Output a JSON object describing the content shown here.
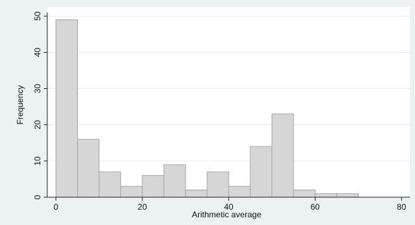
{
  "chart_data": {
    "type": "bar",
    "title": "",
    "xlabel": "Arithmetic average",
    "ylabel": "Frequency",
    "bin_width": 5,
    "bins": [
      {
        "start": 0,
        "end": 5,
        "frequency": 49
      },
      {
        "start": 5,
        "end": 10,
        "frequency": 16
      },
      {
        "start": 10,
        "end": 15,
        "frequency": 7
      },
      {
        "start": 15,
        "end": 20,
        "frequency": 3
      },
      {
        "start": 20,
        "end": 25,
        "frequency": 6
      },
      {
        "start": 25,
        "end": 30,
        "frequency": 9
      },
      {
        "start": 30,
        "end": 35,
        "frequency": 2
      },
      {
        "start": 35,
        "end": 40,
        "frequency": 7
      },
      {
        "start": 40,
        "end": 45,
        "frequency": 3
      },
      {
        "start": 45,
        "end": 50,
        "frequency": 14
      },
      {
        "start": 50,
        "end": 55,
        "frequency": 23
      },
      {
        "start": 55,
        "end": 60,
        "frequency": 2
      },
      {
        "start": 60,
        "end": 65,
        "frequency": 1
      },
      {
        "start": 65,
        "end": 70,
        "frequency": 1
      }
    ],
    "xlim": [
      -2,
      82
    ],
    "ylim": [
      0,
      51
    ],
    "x_ticks": [
      "0",
      "20",
      "40",
      "60",
      "80"
    ],
    "y_ticks": [
      "0",
      "10",
      "20",
      "30",
      "40",
      "50"
    ],
    "grid": true,
    "legend": "none",
    "colors": {
      "bar_fill": "#d6d6d6",
      "bar_stroke": "#a8a8a8",
      "plot_background": "#ffffff",
      "outer_background": "#eaf2f3",
      "grid": "#e6eeef",
      "axis": "#222222"
    }
  }
}
